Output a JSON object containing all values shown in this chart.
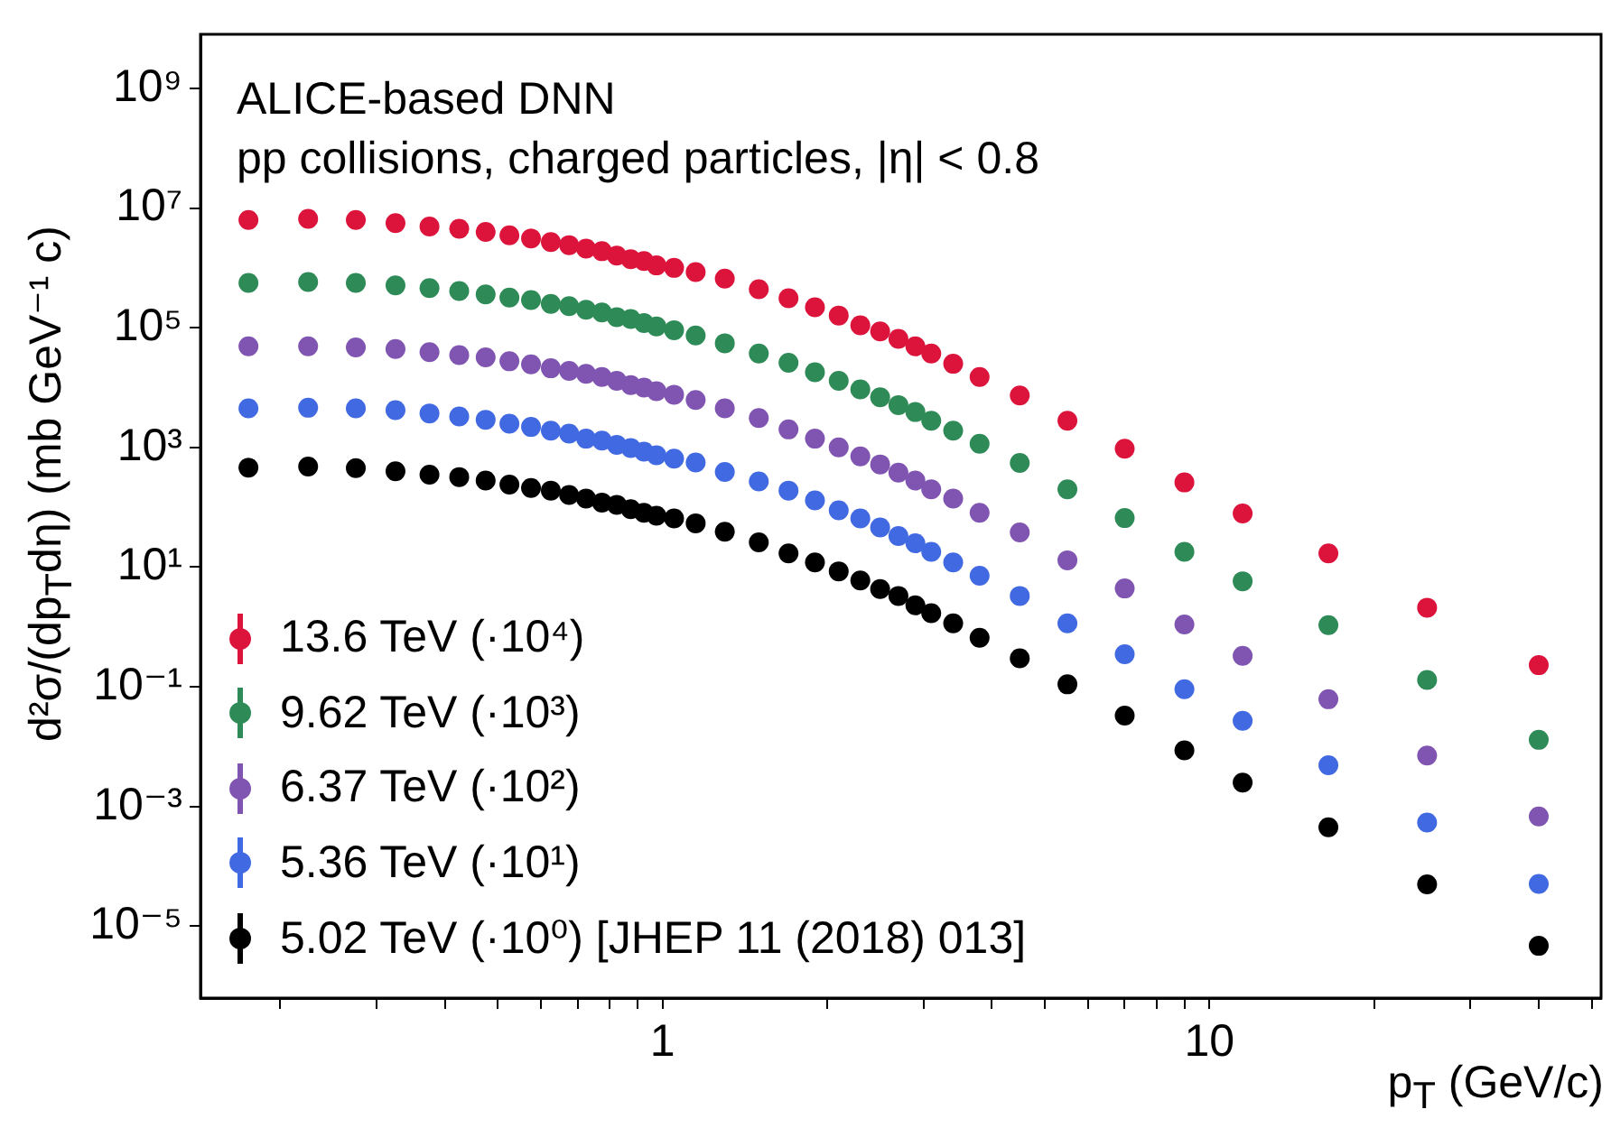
{
  "chart_data": {
    "type": "scatter",
    "annotations": [
      "ALICE-based DNN",
      "pp collisions, charged particles, |η| < 0.8"
    ],
    "xlabel": "p$_{T}$ (GeV/c)",
    "ylabel": "d²σ/(dp$_{T}$dη) (mb GeV⁻¹ c)",
    "log": "xy",
    "legend": "bottom left",
    "marker": "circle",
    "xlim": [
      0.143,
      52
    ],
    "ylim": [
      6.3e-07,
      8000000000.0
    ],
    "xticks": [
      {
        "value": 0.2,
        "label": null
      },
      {
        "value": 0.3,
        "label": null
      },
      {
        "value": 0.4,
        "label": null
      },
      {
        "value": 0.5,
        "label": null
      },
      {
        "value": 0.6,
        "label": null
      },
      {
        "value": 0.7,
        "label": null
      },
      {
        "value": 0.8,
        "label": null
      },
      {
        "value": 0.9,
        "label": null
      },
      1,
      {
        "value": 2,
        "label": null
      },
      {
        "value": 3,
        "label": null
      },
      {
        "value": 4,
        "label": null
      },
      {
        "value": 5,
        "label": null
      },
      {
        "value": 6,
        "label": null
      },
      {
        "value": 7,
        "label": null
      },
      {
        "value": 8,
        "label": null
      },
      {
        "value": 9,
        "label": null
      },
      10,
      {
        "value": 20,
        "label": null
      },
      {
        "value": 30,
        "label": null
      },
      {
        "value": 40,
        "label": null
      },
      {
        "value": 50,
        "label": null
      }
    ],
    "yticks": [
      {
        "value": 1e-05,
        "label": "10⁻⁵"
      },
      {
        "value": 0.001,
        "label": "10⁻³"
      },
      {
        "value": 0.1,
        "label": "10⁻¹"
      },
      {
        "value": 10,
        "label": "10¹"
      },
      {
        "value": 1000,
        "label": "10³"
      },
      {
        "value": 100000,
        "label": "10⁵"
      },
      {
        "value": 10000000,
        "label": "10⁷"
      },
      {
        "value": 1000000000,
        "label": "10⁹"
      }
    ],
    "x": [
      0.175,
      0.225,
      0.275,
      0.325,
      0.375,
      0.425,
      0.475,
      0.525,
      0.575,
      0.625,
      0.675,
      0.725,
      0.775,
      0.825,
      0.875,
      0.925,
      0.975,
      1.05,
      1.15,
      1.3,
      1.5,
      1.7,
      1.9,
      2.1,
      2.3,
      2.5,
      2.7,
      2.9,
      3.1,
      3.4,
      3.8,
      4.5,
      5.5,
      7,
      9,
      11.5,
      16.5,
      25,
      40
    ],
    "series": [
      {
        "name": "13.6 TeV (·10⁴)",
        "color": "#dc143c",
        "values": [
          6300000.0,
          6600000.0,
          6300000.0,
          5600000.0,
          4900000.0,
          4500000.0,
          4000000.0,
          3500000.0,
          3100000.0,
          2700000.0,
          2400000.0,
          2100000.0,
          1900000.0,
          1600000.0,
          1400000.0,
          1300000.0,
          1100000.0,
          1000000.0,
          850000.0,
          660000.0,
          440000.0,
          310000.0,
          220000.0,
          160000.0,
          110000.0,
          87000.0,
          65000.0,
          49000.0,
          37000.0,
          25000.0,
          15000.0,
          7400,
          2800,
          950,
          260,
          79,
          17,
          2.1,
          0.23
        ]
      },
      {
        "name": "9.62 TeV (·10³)",
        "color": "#2e8b57",
        "values": [
          560000.0,
          580000.0,
          560000.0,
          510000.0,
          460000.0,
          410000.0,
          360000.0,
          320000.0,
          290000.0,
          250000.0,
          230000.0,
          200000.0,
          180000.0,
          150000.0,
          140000.0,
          120000.0,
          105000.0,
          91000.0,
          74000.0,
          55000.0,
          37000.0,
          26000.0,
          18000.0,
          13000.0,
          9300,
          6900,
          5100,
          3900,
          2800,
          1900,
          1150,
          550,
          200,
          66,
          18,
          5.8,
          1.07,
          0.13,
          0.013
        ]
      },
      {
        "name": "6.37 TeV (·10²)",
        "color": "#7f55b1",
        "values": [
          49000.0,
          49000.0,
          47000.0,
          44000.0,
          39000.0,
          35000.0,
          32000.0,
          27500.0,
          24500.0,
          21000.0,
          19000.0,
          17000.0,
          15000.0,
          13000.0,
          11000.0,
          10000.0,
          8700,
          7600,
          6200,
          4500,
          3100,
          2000,
          1400,
          1000,
          710,
          520,
          380,
          280,
          200,
          140,
          81,
          38,
          13,
          4.4,
          1.1,
          0.33,
          0.062,
          0.0071,
          0.00068
        ]
      },
      {
        "name": "5.36 TeV (·10¹)",
        "color": "#4169e1",
        "values": [
          4500,
          4600,
          4500,
          4200,
          3700,
          3300,
          2900,
          2500,
          2200,
          1900,
          1700,
          1400,
          1300,
          1100,
          980,
          850,
          740,
          650,
          560,
          390,
          270,
          190,
          130,
          89,
          65,
          46,
          33,
          25,
          18,
          12,
          7.2,
          3.3,
          1.15,
          0.35,
          0.091,
          0.027,
          0.0049,
          0.00054,
          5.1e-05
        ]
      },
      {
        "name": "5.02 TeV (·10⁰) [JHEP 11 (2018) 013]",
        "color": "#000000",
        "values": [
          460,
          480,
          450,
          400,
          350,
          320,
          280,
          240,
          210,
          190,
          160,
          140,
          120,
          110,
          93,
          81,
          72,
          65,
          54,
          39,
          26,
          17,
          12,
          8.5,
          6.0,
          4.3,
          3.3,
          2.3,
          1.7,
          1.15,
          0.66,
          0.3,
          0.11,
          0.033,
          0.0087,
          0.0025,
          0.00045,
          5e-05,
          4.7e-06
        ]
      }
    ]
  }
}
